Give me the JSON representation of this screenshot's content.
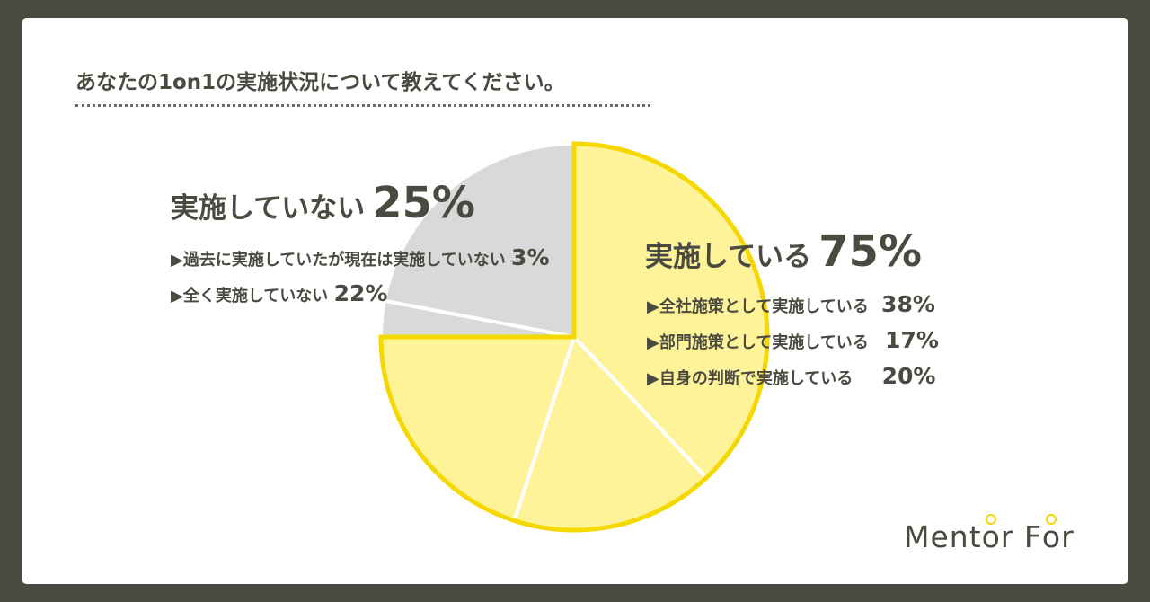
{
  "question": "あなたの1on1の実施状況について教えてください。",
  "chart_data": {
    "type": "pie",
    "categories": [
      "全社施策として実施している",
      "部門施策として実施している",
      "自身の判断で実施している",
      "過去に実施していたが現在は実施していない",
      "全く実施していない"
    ],
    "values": [
      38,
      17,
      20,
      3,
      22
    ],
    "unit": "%",
    "groups": [
      {
        "label": "実施している",
        "value": "75%",
        "members": [
          0,
          1,
          2
        ]
      },
      {
        "label": "実施していない",
        "value": "25%",
        "members": [
          3,
          4
        ]
      }
    ],
    "colors": {
      "implemented_fill": "#fff39a",
      "implemented_outline": "#f4d800",
      "not_implemented_fill": "#d9d9d9",
      "separator": "#ffffff"
    }
  },
  "labels": {
    "not_impl_title": "実施していない",
    "not_impl_pct": "25%",
    "impl_title": "実施している",
    "impl_pct": "75%",
    "items_not_impl": [
      {
        "text": "▶過去に実施していたが現在は実施していない",
        "pct": "3%"
      },
      {
        "text": "▶全く実施していない",
        "pct": "22%"
      }
    ],
    "items_impl": [
      {
        "text": "▶全社施策として実施している",
        "pct": "38%"
      },
      {
        "text": "▶部門施策として実施している",
        "pct": "17%"
      },
      {
        "text": "▶自身の判断で実施している",
        "pct": "20%"
      }
    ]
  },
  "logo": {
    "part1": "Ment",
    "o1": "o",
    "part2": "r F",
    "o2": "o",
    "part3": "r"
  }
}
